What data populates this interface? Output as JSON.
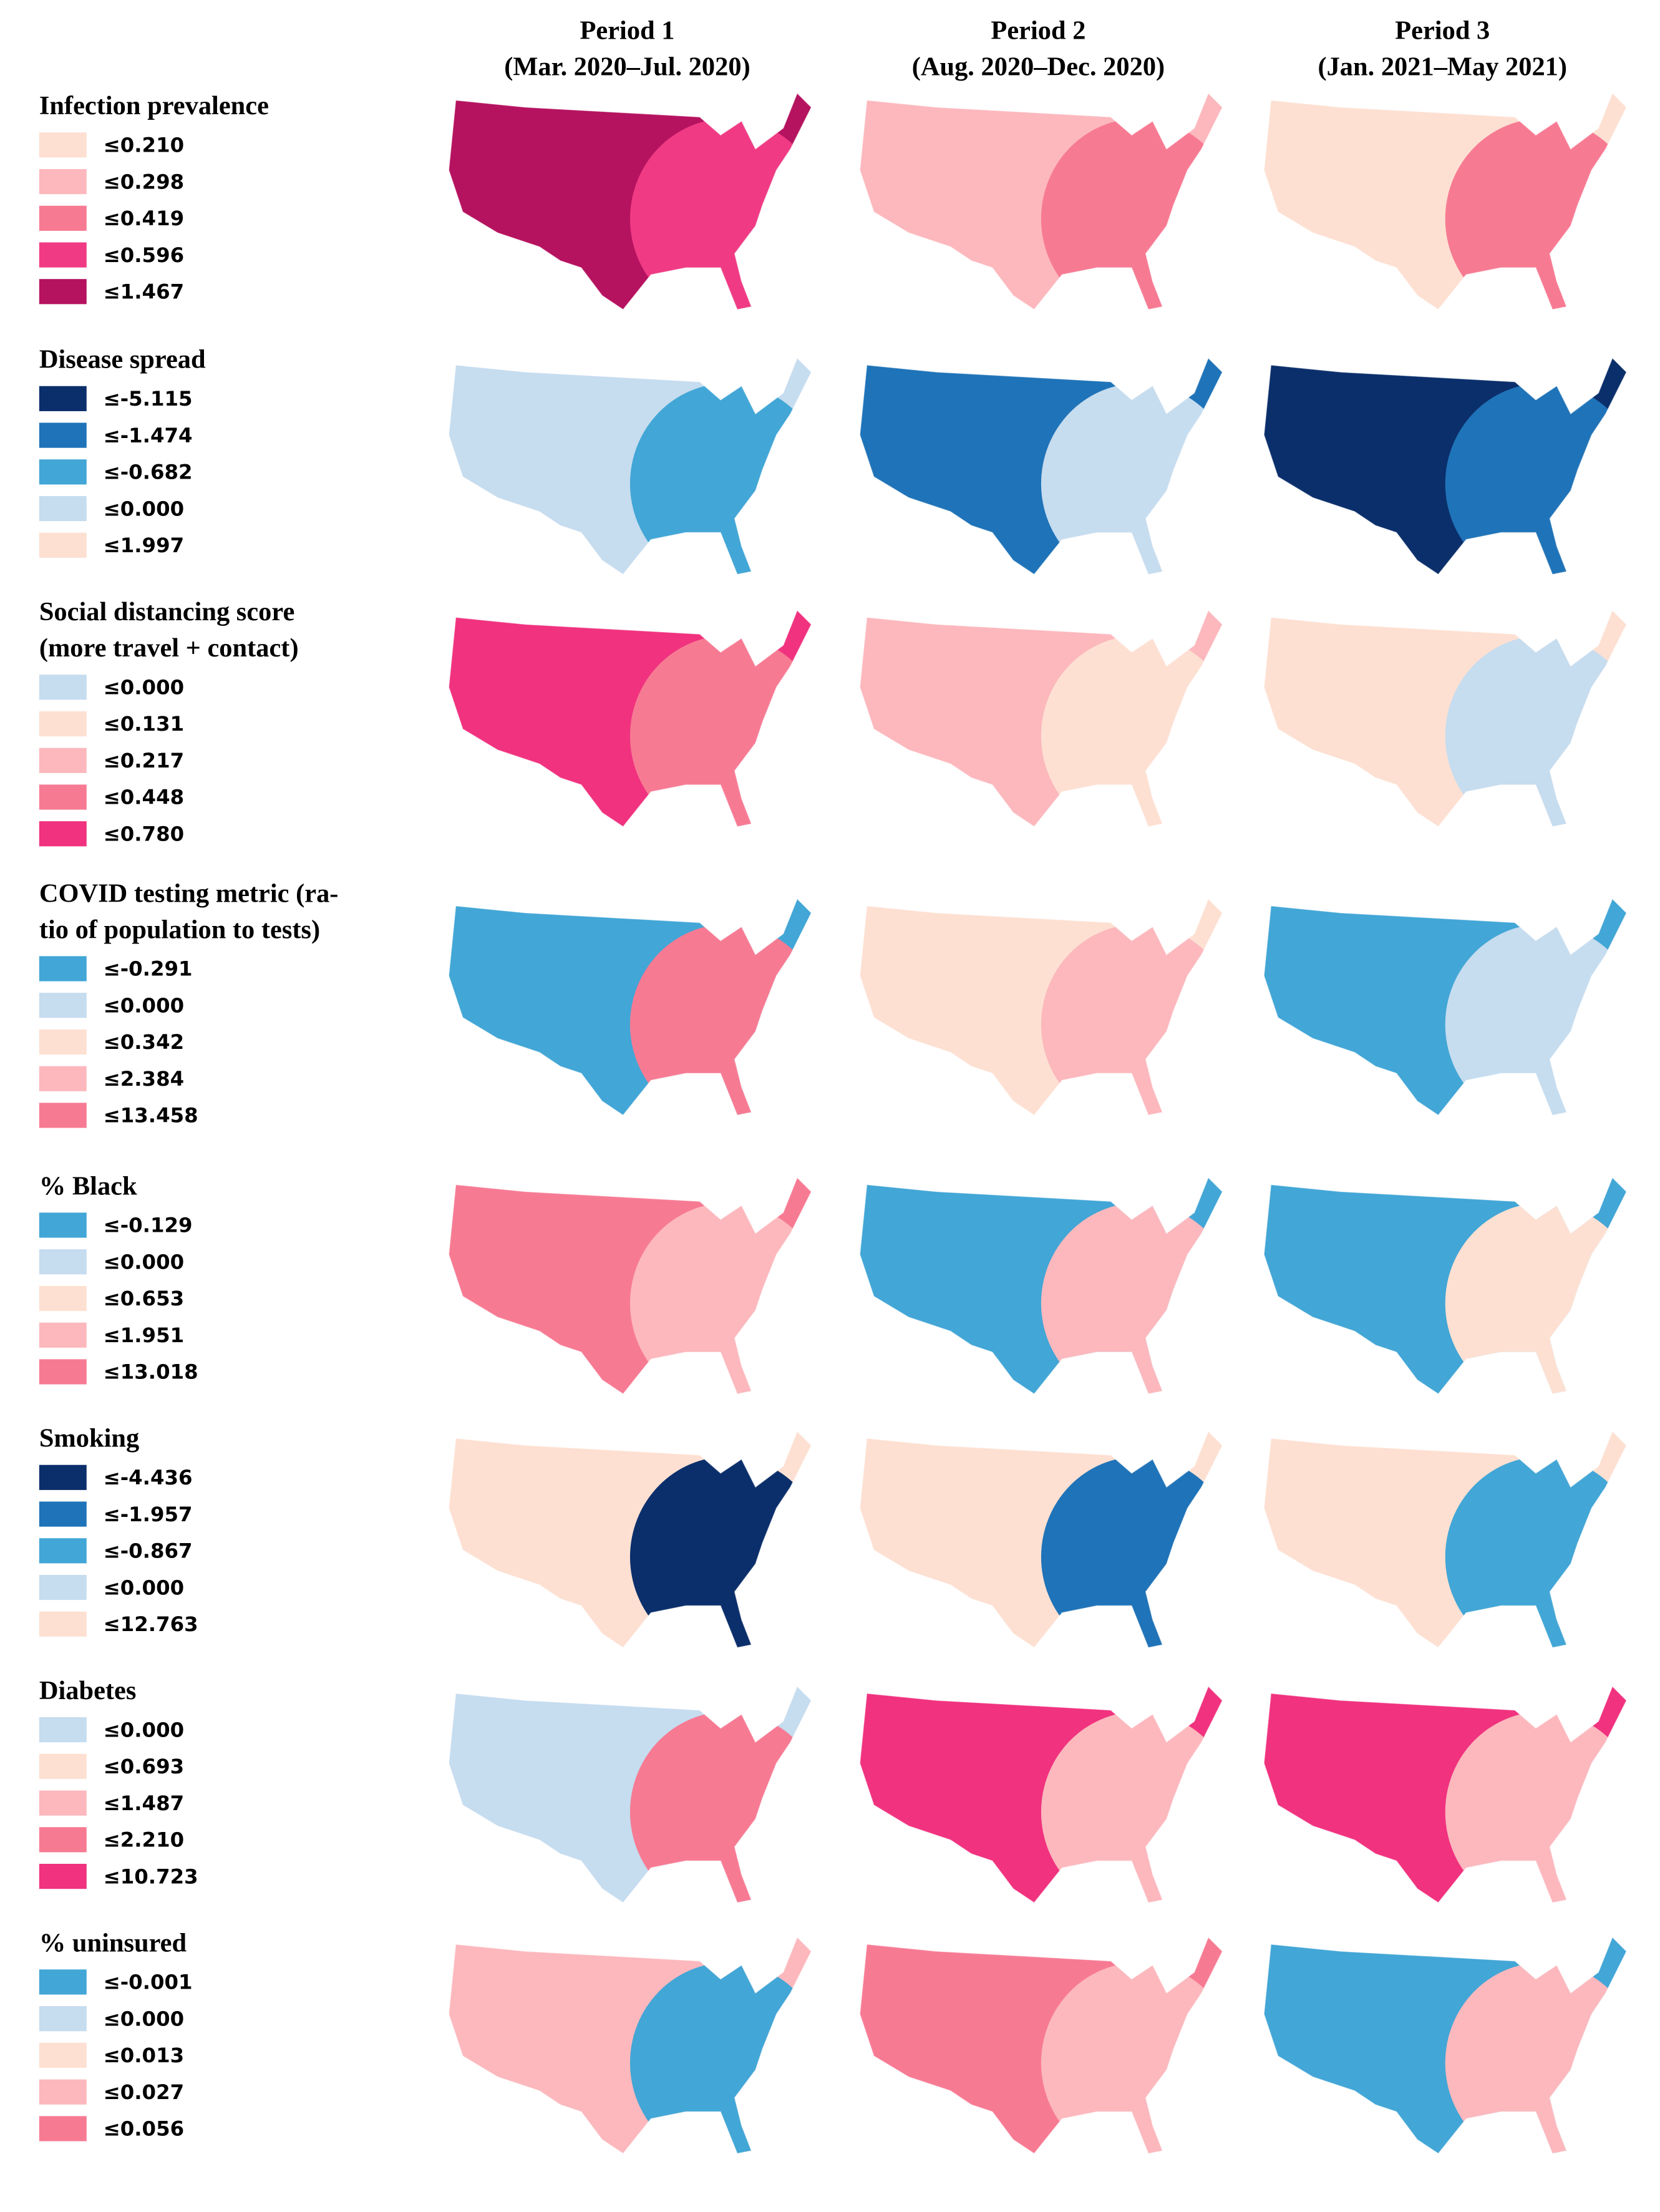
{
  "header": {
    "periods": [
      {
        "line1": "Period 1",
        "line2": "(Mar. 2020–Jul. 2020)"
      },
      {
        "line1": "Period 2",
        "line2": "(Aug. 2020–Dec. 2020)"
      },
      {
        "line1": "Period 3",
        "line2": "(Jan. 2021–May 2021)"
      }
    ]
  },
  "variables": [
    {
      "title": [
        "Infection prevalence"
      ],
      "legend": [
        {
          "label": "≤0.210",
          "color": "#fde0d2"
        },
        {
          "label": "≤0.298",
          "color": "#fcb8bd"
        },
        {
          "label": "≤0.419",
          "color": "#f77a93"
        },
        {
          "label": "≤0.596",
          "color": "#f03a84"
        },
        {
          "label": "≤1.467",
          "color": "#b5125f"
        }
      ]
    },
    {
      "title": [
        "Disease spread"
      ],
      "legend": [
        {
          "label": "≤-5.115",
          "color": "#0b2f6b"
        },
        {
          "label": "≤-1.474",
          "color": "#1f73b8"
        },
        {
          "label": "≤-0.682",
          "color": "#42a6d6"
        },
        {
          "label": "≤0.000",
          "color": "#c6dcef"
        },
        {
          "label": "≤1.997",
          "color": "#fde0d2"
        }
      ]
    },
    {
      "title": [
        "Social distancing score",
        "(more travel + contact)"
      ],
      "legend": [
        {
          "label": "≤0.000",
          "color": "#c6dcef"
        },
        {
          "label": "≤0.131",
          "color": "#fde0d2"
        },
        {
          "label": "≤0.217",
          "color": "#fcb8bd"
        },
        {
          "label": "≤0.448",
          "color": "#f77a93"
        },
        {
          "label": "≤0.780",
          "color": "#f0327f"
        }
      ]
    },
    {
      "title": [
        "COVID testing metric (ra-",
        "tio of population to tests)"
      ],
      "legend": [
        {
          "label": "≤-0.291",
          "color": "#42a6d6"
        },
        {
          "label": "≤0.000",
          "color": "#c6dcef"
        },
        {
          "label": "≤0.342",
          "color": "#fde0d2"
        },
        {
          "label": "≤2.384",
          "color": "#fcb8bd"
        },
        {
          "label": "≤13.458",
          "color": "#f77a93"
        }
      ]
    },
    {
      "title": [
        "% Black"
      ],
      "legend": [
        {
          "label": "≤-0.129",
          "color": "#42a6d6"
        },
        {
          "label": "≤0.000",
          "color": "#c6dcef"
        },
        {
          "label": "≤0.653",
          "color": "#fde0d2"
        },
        {
          "label": "≤1.951",
          "color": "#fcb8bd"
        },
        {
          "label": "≤13.018",
          "color": "#f77a93"
        }
      ]
    },
    {
      "title": [
        "Smoking"
      ],
      "legend": [
        {
          "label": "≤-4.436",
          "color": "#0b2f6b"
        },
        {
          "label": "≤-1.957",
          "color": "#1f73b8"
        },
        {
          "label": "≤-0.867",
          "color": "#42a6d6"
        },
        {
          "label": "≤0.000",
          "color": "#c6dcef"
        },
        {
          "label": "≤12.763",
          "color": "#fde0d2"
        }
      ]
    },
    {
      "title": [
        "Diabetes"
      ],
      "legend": [
        {
          "label": "≤0.000",
          "color": "#c6dcef"
        },
        {
          "label": "≤0.693",
          "color": "#fde0d2"
        },
        {
          "label": "≤1.487",
          "color": "#fcb8bd"
        },
        {
          "label": "≤2.210",
          "color": "#f77a93"
        },
        {
          "label": "≤10.723",
          "color": "#f0327f"
        }
      ]
    },
    {
      "title": [
        "% uninsured"
      ],
      "legend": [
        {
          "label": "≤-0.001",
          "color": "#42a6d6"
        },
        {
          "label": "≤0.000",
          "color": "#c6dcef"
        },
        {
          "label": "≤0.013",
          "color": "#fde0d2"
        },
        {
          "label": "≤0.027",
          "color": "#fcb8bd"
        },
        {
          "label": "≤0.056",
          "color": "#f77a93"
        }
      ]
    }
  ]
}
